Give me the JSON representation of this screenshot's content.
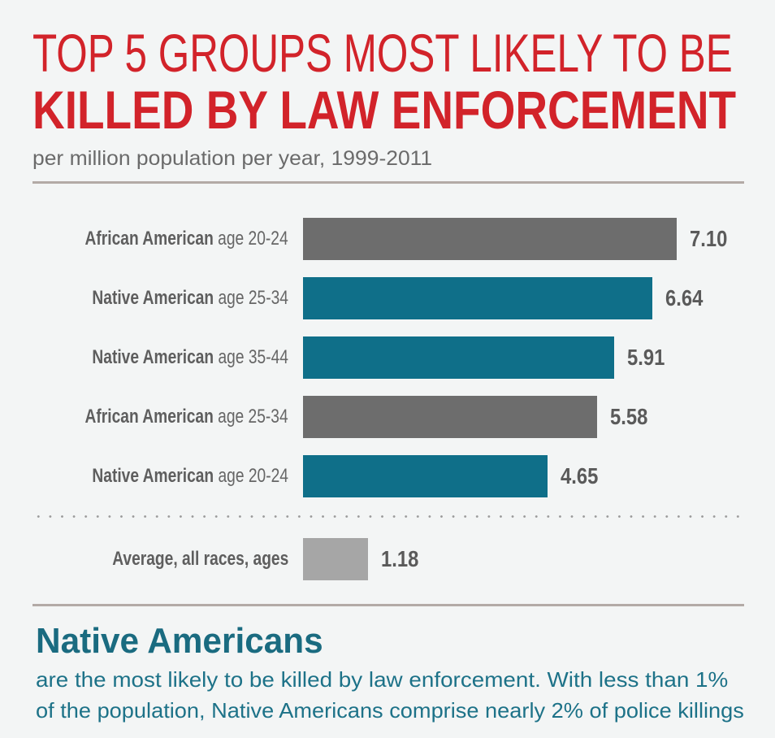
{
  "title_line1": "TOP 5 GROUPS MOST LIKELY TO BE",
  "title_line2": "KILLED BY LAW ENFORCEMENT",
  "subtitle": "per million population per year, 1999-2011",
  "colors": {
    "title": "#d2232a",
    "african_american": "#6d6d6d",
    "native_american": "#0f6f89",
    "average": "#a6a6a6",
    "text_teal": "#1a6b80"
  },
  "chart_data": {
    "type": "bar",
    "orientation": "horizontal",
    "title": "TOP 5 GROUPS MOST LIKELY TO BE KILLED BY LAW ENFORCEMENT",
    "subtitle": "per million population per year, 1999-2011",
    "categories": [
      {
        "group": "African American",
        "age": "age 20-24",
        "value": 7.1,
        "label": "7.10",
        "series": "african_american"
      },
      {
        "group": "Native American",
        "age": "age 25-34",
        "value": 6.64,
        "label": "6.64",
        "series": "native_american"
      },
      {
        "group": "Native American",
        "age": "age 35-44",
        "value": 5.91,
        "label": "5.91",
        "series": "native_american"
      },
      {
        "group": "African American",
        "age": "age 25-34",
        "value": 5.58,
        "label": "5.58",
        "series": "african_american"
      },
      {
        "group": "Native American",
        "age": "age 20-24",
        "value": 4.65,
        "label": "4.65",
        "series": "native_american"
      }
    ],
    "average": {
      "label": "Average, all races, ages",
      "value": 1.18,
      "value_label": "1.18"
    },
    "xlim": [
      0,
      7.1
    ],
    "grid": false
  },
  "callout": {
    "heading": "Native Americans",
    "line1": "are the most likely to be killed by law enforcement. With less than 1%",
    "line2": "of the population, Native Americans comprise nearly 2% of police killings"
  }
}
